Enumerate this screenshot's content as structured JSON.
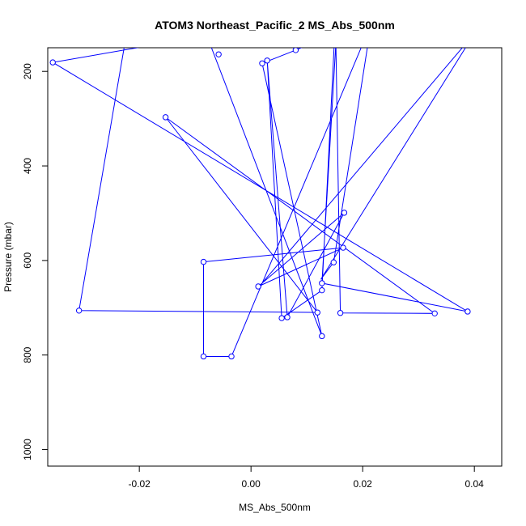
{
  "chart_data": {
    "type": "line",
    "title": "ATOM3 Northeast_Pacific_2 MS_Abs_500nm",
    "xlabel": "MS_Abs_500nm",
    "ylabel": "Pressure (mbar)",
    "xlim": [
      -0.0364,
      0.0449
    ],
    "ylim": [
      1035,
      150
    ],
    "y_inverted": true,
    "x_ticks": [
      -0.02,
      0.0,
      0.02,
      0.04
    ],
    "x_tick_labels": [
      "-0.02",
      "0.00",
      "0.02",
      "0.04"
    ],
    "y_ticks": [
      200,
      400,
      600,
      800,
      1000
    ],
    "y_tick_labels": [
      "200",
      "400",
      "600",
      "800",
      "1000"
    ],
    "grid": false,
    "series": [
      {
        "color": "#0000ff",
        "marker": "open-circle",
        "points": [
          {
            "x": 0.004,
            "y": 100
          },
          {
            "x": -0.0355,
            "y": 181
          },
          {
            "x": 0.0388,
            "y": 708
          },
          {
            "x": 0.0127,
            "y": 648
          },
          {
            "x": 0.0152,
            "y": 140
          },
          {
            "x": 0.016,
            "y": 711
          },
          {
            "x": 0.0329,
            "y": 712
          },
          {
            "x": -0.0153,
            "y": 297
          },
          {
            "x": 0.0119,
            "y": 710
          },
          {
            "x": -0.0308,
            "y": 706
          },
          {
            "x": -0.022,
            "y": 100
          },
          {
            "x": -0.0087,
            "y": 100
          },
          {
            "x": 0.0127,
            "y": 760
          },
          {
            "x": 0.002,
            "y": 183
          },
          {
            "x": 0.008,
            "y": 155
          },
          {
            "x": 0.015,
            "y": 120
          },
          {
            "x": 0.0127,
            "y": 663
          },
          {
            "x": 0.0055,
            "y": 722
          },
          {
            "x": 0.0029,
            "y": 177
          },
          {
            "x": 0.0065,
            "y": 720
          },
          {
            "x": 0.0167,
            "y": 499
          },
          {
            "x": 0.0013,
            "y": 655
          },
          {
            "x": 0.0165,
            "y": 573
          },
          {
            "x": -0.0085,
            "y": 603
          },
          {
            "x": -0.0085,
            "y": 803
          },
          {
            "x": -0.0065,
            "y": 803
          },
          {
            "x": -0.0035,
            "y": 803
          },
          {
            "x": 0.0215,
            "y": 100
          },
          {
            "x": 0.0148,
            "y": 604
          },
          {
            "x": 0.0125,
            "y": 640
          },
          {
            "x": 0.04,
            "y": 120
          },
          {
            "x": 0.0022,
            "y": 645
          }
        ],
        "markers": [
          {
            "x": -0.0355,
            "y": 181
          },
          {
            "x": 0.0388,
            "y": 708
          },
          {
            "x": 0.0127,
            "y": 648
          },
          {
            "x": 0.016,
            "y": 711
          },
          {
            "x": 0.0329,
            "y": 712
          },
          {
            "x": -0.0153,
            "y": 297
          },
          {
            "x": 0.0119,
            "y": 710
          },
          {
            "x": -0.0308,
            "y": 706
          },
          {
            "x": 0.0127,
            "y": 760
          },
          {
            "x": 0.002,
            "y": 183
          },
          {
            "x": 0.008,
            "y": 155
          },
          {
            "x": 0.0127,
            "y": 663
          },
          {
            "x": 0.0055,
            "y": 722
          },
          {
            "x": 0.0029,
            "y": 177
          },
          {
            "x": 0.0065,
            "y": 720
          },
          {
            "x": 0.0167,
            "y": 499
          },
          {
            "x": 0.0013,
            "y": 655
          },
          {
            "x": 0.0165,
            "y": 573
          },
          {
            "x": -0.0085,
            "y": 603
          },
          {
            "x": -0.0085,
            "y": 803
          },
          {
            "x": -0.0035,
            "y": 803
          },
          {
            "x": -0.0058,
            "y": 164
          },
          {
            "x": 0.0148,
            "y": 604
          }
        ]
      }
    ]
  }
}
